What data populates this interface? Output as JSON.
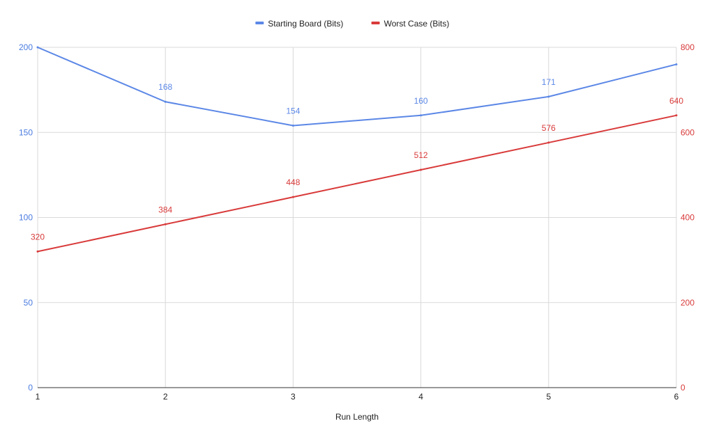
{
  "chart_data": {
    "type": "line",
    "title": "",
    "xlabel": "Run Length",
    "x": [
      1,
      2,
      3,
      4,
      5,
      6
    ],
    "xlim": [
      1,
      6
    ],
    "grid": true,
    "legend_position": "top-center",
    "y_left": {
      "ylim": [
        0,
        200
      ],
      "ticks": [
        0,
        50,
        100,
        150,
        200
      ],
      "color": "#4a7be0"
    },
    "y_right": {
      "ylim": [
        0,
        800
      ],
      "ticks": [
        0,
        200,
        400,
        600,
        800
      ],
      "color": "#d93a3a"
    },
    "series": [
      {
        "name": "Starting Board (Bits)",
        "axis": "left",
        "color": "#5b87e6",
        "values": [
          200,
          168,
          154,
          160,
          171,
          190
        ],
        "labels": [
          "",
          "168",
          "154",
          "160",
          "171",
          ""
        ]
      },
      {
        "name": "Worst Case (Bits)",
        "axis": "right",
        "color": "#d93a3a",
        "values": [
          320,
          384,
          448,
          512,
          576,
          640
        ],
        "labels": [
          "320",
          "384",
          "448",
          "512",
          "576",
          "640"
        ]
      }
    ]
  }
}
